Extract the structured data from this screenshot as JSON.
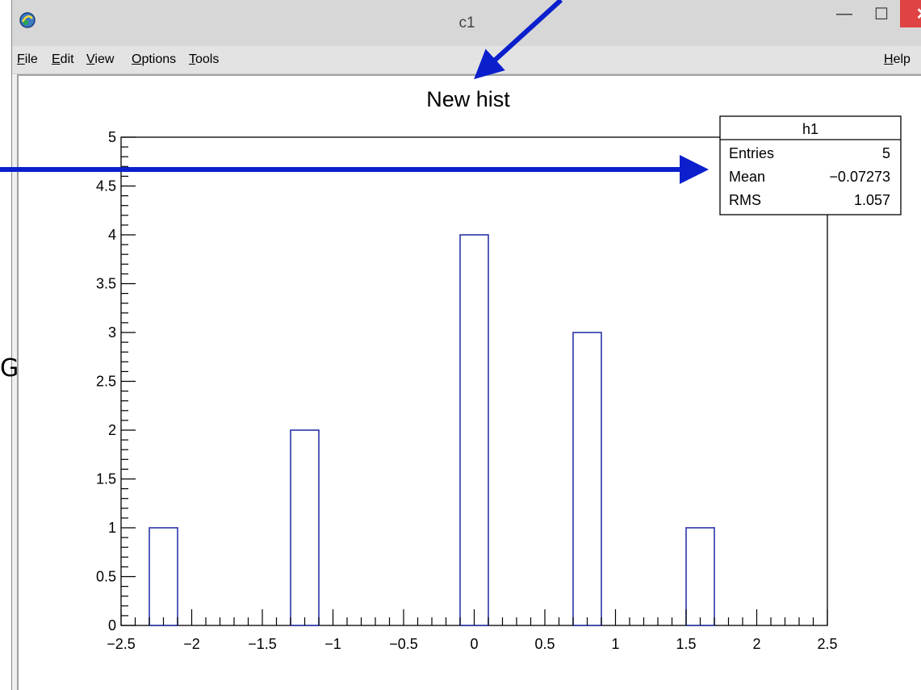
{
  "window": {
    "title": "c1",
    "close_glyph": "✕",
    "maximize_glyph": "☐",
    "minimize_glyph": "—",
    "icon": "root-app-icon"
  },
  "menu": {
    "items": [
      "File",
      "Edit",
      "View",
      "Options",
      "Tools"
    ],
    "help": "Help"
  },
  "left_fragment": "G",
  "stats": {
    "title": "h1",
    "rows": [
      {
        "label": "Entries",
        "value": "5"
      },
      {
        "label": "Mean",
        "value": "−0.07273"
      },
      {
        "label": "RMS",
        "value": "1.057"
      }
    ]
  },
  "colors": {
    "bar_outline": "#2b35a8",
    "arrow": "#0b1fcc",
    "close_button": "#e04343"
  },
  "chart_data": {
    "type": "bar",
    "title": "New hist",
    "xlabel": "",
    "ylabel": "",
    "xlim": [
      -2.5,
      2.5
    ],
    "ylim": [
      0,
      5
    ],
    "bin_width": 0.2,
    "bars": [
      {
        "center": -2.2,
        "value": 1
      },
      {
        "center": -1.2,
        "value": 2
      },
      {
        "center": 0.0,
        "value": 4
      },
      {
        "center": 0.8,
        "value": 3
      },
      {
        "center": 1.6,
        "value": 1
      }
    ],
    "x_ticks": [
      "−2.5",
      "−2",
      "−1.5",
      "−1",
      "−0.5",
      "0",
      "0.5",
      "1",
      "1.5",
      "2",
      "2.5"
    ],
    "y_ticks": [
      "0",
      "0.5",
      "1",
      "1.5",
      "2",
      "2.5",
      "3",
      "3.5",
      "4",
      "4.5",
      "5"
    ]
  }
}
